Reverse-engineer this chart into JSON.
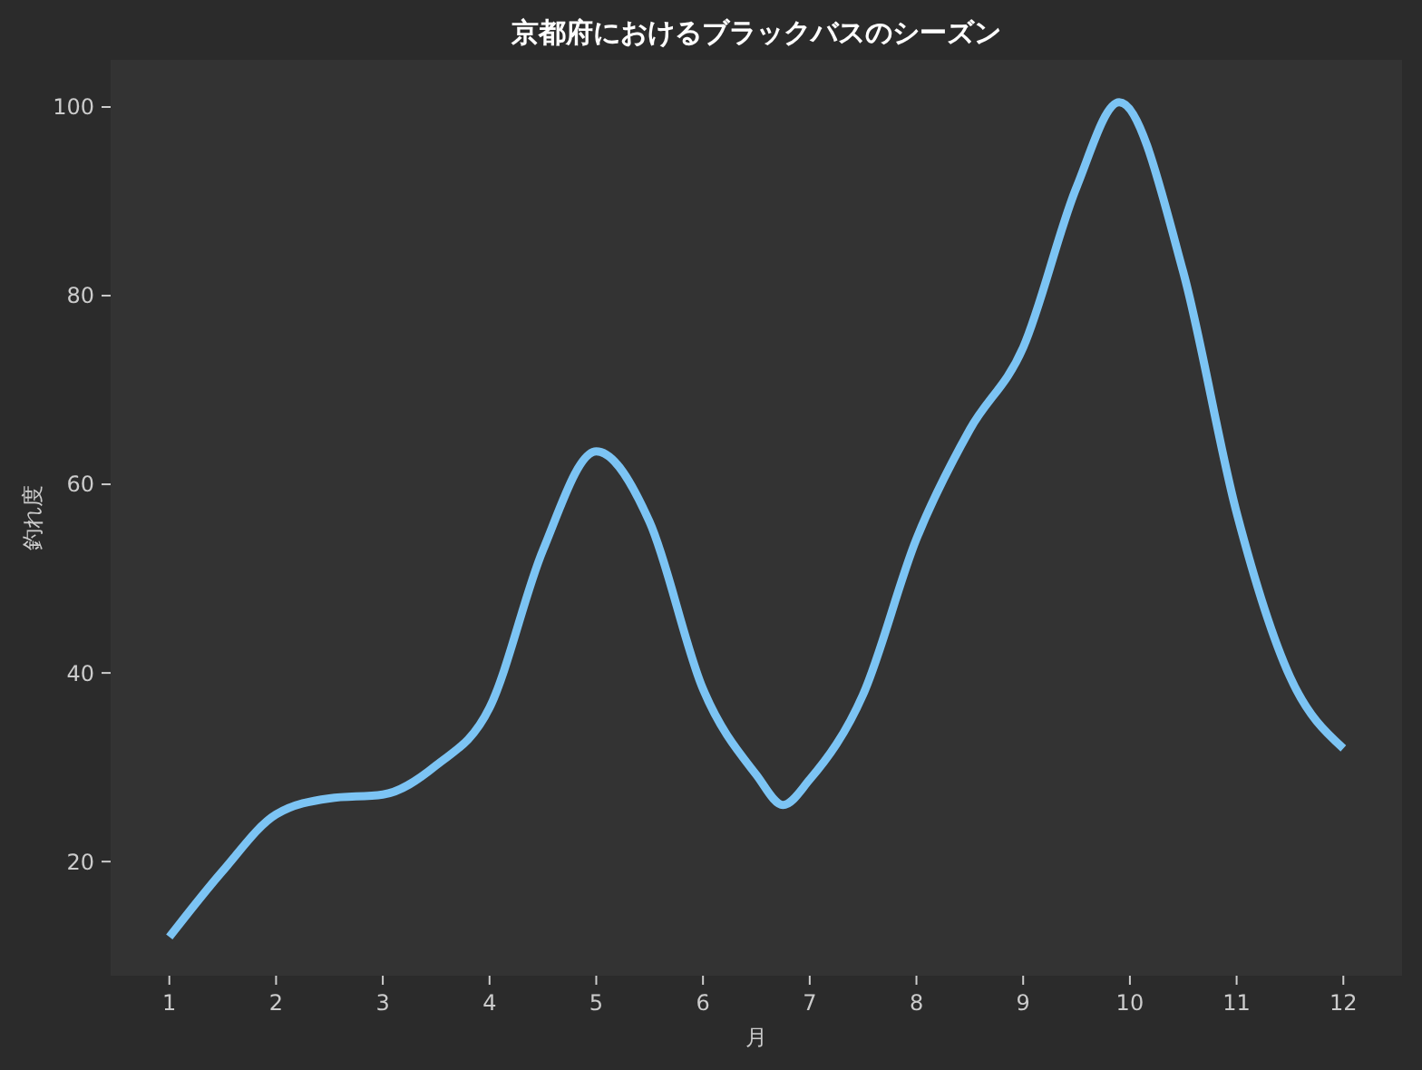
{
  "chart_data": {
    "type": "line",
    "title": "京都府におけるブラックバスのシーズン",
    "xlabel": "月",
    "ylabel": "釣れ度",
    "x": [
      1,
      1.5,
      2,
      2.5,
      3,
      3.5,
      4,
      4.5,
      5,
      5.5,
      6,
      6.5,
      6.75,
      7,
      7.5,
      8,
      8.5,
      9,
      9.5,
      9.9,
      10.5,
      11,
      11.5,
      12
    ],
    "series": [
      {
        "color": "#7cc4f4",
        "values": [
          12,
          19,
          25,
          26.7,
          27.1,
          30.2,
          36.3,
          53,
          63.5,
          56,
          38.3,
          29.2,
          26,
          28.7,
          37.7,
          54.2,
          65.8,
          74.5,
          91.5,
          100.5,
          82.5,
          57,
          39.6,
          32
        ]
      }
    ],
    "xlim": [
      0.45,
      12.55
    ],
    "xticks": [
      1,
      2,
      3,
      4,
      5,
      6,
      7,
      8,
      9,
      10,
      11,
      12
    ],
    "ylim": [
      7.9,
      105
    ],
    "yticks": [
      20,
      40,
      60,
      80,
      100
    ],
    "grid": false,
    "marker": "none",
    "line_style": "solid"
  }
}
